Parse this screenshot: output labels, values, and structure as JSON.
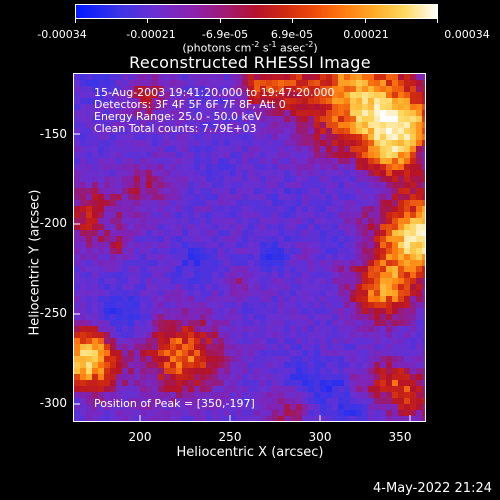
{
  "colorbar": {
    "tick_labels": [
      "-0.00034",
      "-0.00021",
      "-6.9e-05",
      "6.9e-05",
      "0.00021",
      "0.00034"
    ],
    "unit_text": "(photons cm",
    "unit_exp1": "-2",
    "unit_mid": " s",
    "unit_exp2": "-1",
    "unit_end": " asec",
    "unit_exp3": "-2",
    "unit_close": ")"
  },
  "image": {
    "title": "Reconstructed RHESSI Image",
    "info_lines": [
      "15-Aug-2003 19:41:20.000 to 19:47:20.000",
      "Detectors: 3F 4F 5F 6F 7F 8F, Att 0",
      "Energy Range: 25.0 - 50.0 keV",
      "Clean    Total counts: 7.79E+03"
    ],
    "peak": "Position of Peak = [350,-197]",
    "colors": {
      "low": "#0018ff",
      "mid": "#b4122a",
      "high": "#ffffff"
    }
  },
  "axes": {
    "y_title": "Heliocentric Y (arcsec)",
    "x_title": "Heliocentric X (arcsec)",
    "y_ticks": [
      "-150",
      "-200",
      "-250",
      "-300"
    ],
    "x_ticks": [
      "200",
      "250",
      "300",
      "350"
    ]
  },
  "footer": {
    "date": "4-May-2022 21:24"
  }
}
